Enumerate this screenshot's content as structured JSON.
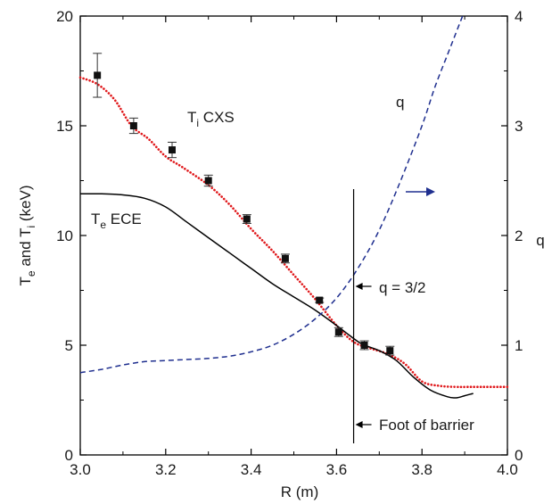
{
  "chart_data": {
    "type": "line",
    "xlabel": "R (m)",
    "ylabel": {
      "main": "T",
      "sub1": "e",
      "mid": " and T",
      "sub2": "i",
      "tail": " (keV)"
    },
    "y2label": "q",
    "xlim": [
      3.0,
      4.0
    ],
    "ylim": [
      0,
      20
    ],
    "y2lim": [
      0,
      4
    ],
    "x_ticks": [
      "3.0",
      "3.2",
      "3.4",
      "3.6",
      "3.8",
      "4.0"
    ],
    "y_ticks": [
      "0",
      "5",
      "10",
      "15",
      "20"
    ],
    "y2_ticks": [
      "0",
      "1",
      "2",
      "3",
      "4"
    ],
    "grid": false,
    "colors": {
      "ti_fit": "#e0191c",
      "te": "#000000",
      "q": "#1f2f8f",
      "markers": "#111111"
    },
    "series": [
      {
        "name": "Ti CXS",
        "kind": "markers-with-errorbars",
        "x": [
          3.04,
          3.125,
          3.215,
          3.3,
          3.39,
          3.48,
          3.56,
          3.605,
          3.665,
          3.725
        ],
        "y": [
          17.3,
          15.0,
          13.9,
          12.5,
          10.75,
          8.95,
          7.05,
          5.6,
          5.0,
          4.75
        ],
        "err": [
          1.0,
          0.35,
          0.35,
          0.25,
          0.2,
          0.2,
          0.1,
          0.2,
          0.2,
          0.2
        ]
      },
      {
        "name": "Ti CXS fit",
        "kind": "dotted",
        "x": [
          3.0,
          3.04,
          3.08,
          3.12,
          3.16,
          3.2,
          3.24,
          3.3,
          3.35,
          3.4,
          3.45,
          3.5,
          3.55,
          3.6,
          3.64,
          3.68,
          3.72,
          3.76,
          3.8,
          3.84,
          3.88,
          3.92,
          4.0
        ],
        "y": [
          17.2,
          16.9,
          16.2,
          15.0,
          14.4,
          13.6,
          13.1,
          12.3,
          11.4,
          10.3,
          9.3,
          8.2,
          7.1,
          5.9,
          5.15,
          4.85,
          4.6,
          4.15,
          3.35,
          3.15,
          3.1,
          3.1,
          3.1
        ]
      },
      {
        "name": "Te ECE",
        "kind": "solid",
        "x": [
          3.0,
          3.05,
          3.1,
          3.15,
          3.2,
          3.25,
          3.3,
          3.35,
          3.4,
          3.45,
          3.5,
          3.55,
          3.6,
          3.63,
          3.66,
          3.7,
          3.74,
          3.78,
          3.82,
          3.86,
          3.88,
          3.9,
          3.92
        ],
        "y": [
          11.9,
          11.9,
          11.85,
          11.7,
          11.3,
          10.6,
          9.9,
          9.2,
          8.5,
          7.8,
          7.2,
          6.6,
          5.9,
          5.45,
          5.05,
          4.75,
          4.3,
          3.55,
          2.95,
          2.65,
          2.6,
          2.7,
          2.8
        ]
      },
      {
        "name": "q",
        "axis": "right",
        "kind": "dashed",
        "x": [
          3.0,
          3.05,
          3.1,
          3.15,
          3.2,
          3.25,
          3.3,
          3.35,
          3.4,
          3.45,
          3.5,
          3.55,
          3.6,
          3.65,
          3.7,
          3.75,
          3.8,
          3.83,
          3.86,
          3.88,
          3.895
        ],
        "y": [
          0.75,
          0.78,
          0.82,
          0.85,
          0.86,
          0.87,
          0.88,
          0.9,
          0.94,
          1.0,
          1.1,
          1.24,
          1.43,
          1.7,
          2.05,
          2.5,
          3.0,
          3.35,
          3.65,
          3.85,
          4.0
        ]
      }
    ],
    "annotations": {
      "ti_label": {
        "main": "T",
        "sub": "i",
        "tail": " CXS"
      },
      "te_label": {
        "main": "T",
        "sub": "e",
        "tail": " ECE"
      },
      "q_label": "q",
      "q32_label": "q = 3/2",
      "foot_label": "Foot of barrier",
      "barrier_x": 3.64
    }
  }
}
